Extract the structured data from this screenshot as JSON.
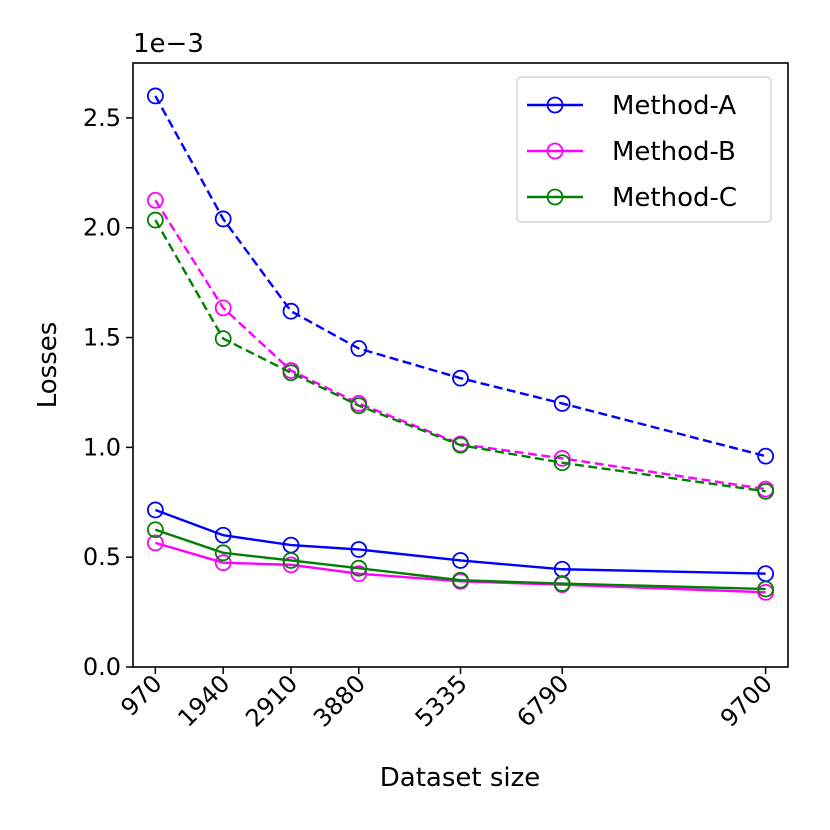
{
  "chart_data": {
    "type": "line",
    "x": [
      970,
      1940,
      2910,
      3880,
      5335,
      6790,
      9700
    ],
    "x_tick_labels": [
      "970",
      "1940",
      "2910",
      "3880",
      "5335",
      "6790",
      "9700"
    ],
    "xlabel": "Dataset size",
    "ylabel": "Losses",
    "y_offset_label": "1e−3",
    "y_scale": 0.001,
    "ylim": [
      0.0,
      2.75
    ],
    "y_ticks": [
      0.0,
      0.5,
      1.0,
      1.5,
      2.0,
      2.5
    ],
    "y_tick_labels": [
      "0.0",
      "0.5",
      "1.0",
      "1.5",
      "2.0",
      "2.5"
    ],
    "grid": false,
    "legend_position": "top-right",
    "series": [
      {
        "name": "Method-A",
        "color": "#0000ff",
        "style": "dashed",
        "legend": false,
        "values": [
          2.6,
          2.04,
          1.62,
          1.45,
          1.315,
          1.2,
          0.96
        ]
      },
      {
        "name": "Method-B",
        "color": "#ff00ff",
        "style": "dashed",
        "legend": false,
        "values": [
          2.125,
          1.635,
          1.35,
          1.2,
          1.015,
          0.95,
          0.81
        ]
      },
      {
        "name": "Method-C",
        "color": "#008000",
        "style": "dashed",
        "legend": false,
        "values": [
          2.035,
          1.495,
          1.34,
          1.19,
          1.01,
          0.93,
          0.8
        ]
      },
      {
        "name": "Method-A",
        "color": "#0000ff",
        "style": "solid",
        "legend": true,
        "values": [
          0.715,
          0.6,
          0.555,
          0.535,
          0.485,
          0.445,
          0.425
        ]
      },
      {
        "name": "Method-B",
        "color": "#ff00ff",
        "style": "solid",
        "legend": true,
        "values": [
          0.565,
          0.475,
          0.465,
          0.425,
          0.39,
          0.375,
          0.34
        ]
      },
      {
        "name": "Method-C",
        "color": "#008000",
        "style": "solid",
        "legend": true,
        "values": [
          0.625,
          0.52,
          0.485,
          0.45,
          0.395,
          0.38,
          0.355
        ]
      }
    ]
  }
}
